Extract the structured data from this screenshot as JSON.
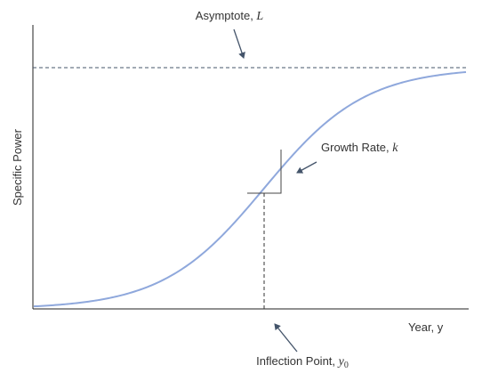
{
  "axes": {
    "y_label": "Specific Power",
    "x_label": "Year, y"
  },
  "annotations": {
    "asymptote": {
      "text": "Asymptote, ",
      "symbol": "L"
    },
    "growth_rate": {
      "text": "Growth Rate, ",
      "symbol": "k"
    },
    "inflection_point": {
      "text": "Inflection Point, ",
      "symbol": "y",
      "subscript": "0"
    }
  }
}
